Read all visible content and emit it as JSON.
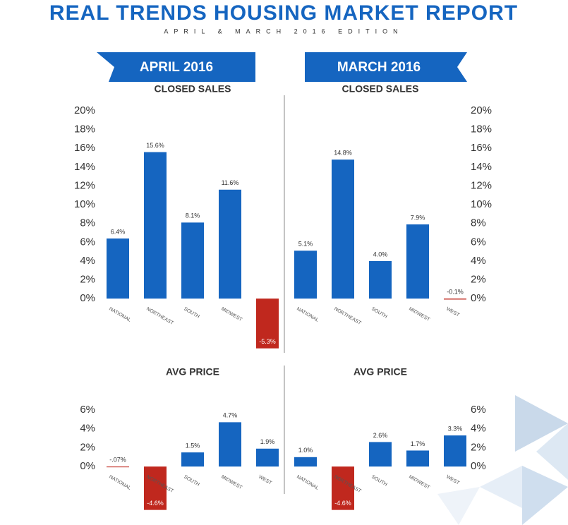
{
  "title": "REAL TRENDS HOUSING MARKET REPORT",
  "subtitle": "APRIL & MARCH 2016 EDITION",
  "banners": [
    "APRIL 2016",
    "MARCH 2016"
  ],
  "chart_data": [
    {
      "type": "bar",
      "title": "CLOSED SALES",
      "axis_side": "left",
      "categories": [
        "NATIONAL",
        "NORTHEAST",
        "SOUTH",
        "MIDWEST",
        null
      ],
      "values": [
        6.4,
        15.6,
        8.1,
        11.6,
        -5.3
      ],
      "value_labels": [
        "6.4%",
        "15.6%",
        "8.1%",
        "11.6%",
        "-5.3%"
      ],
      "color": "#1565c0",
      "negative_color": "#c0281e",
      "ylim": [
        -6,
        20
      ],
      "yticks": [
        {
          "value": 0,
          "label": "0%"
        },
        {
          "value": 2,
          "label": "2%"
        },
        {
          "value": 4,
          "label": "4%"
        },
        {
          "value": 6,
          "label": "6%"
        },
        {
          "value": 8,
          "label": "8%"
        },
        {
          "value": 10,
          "label": "10%"
        },
        {
          "value": 12,
          "label": "12%"
        },
        {
          "value": 14,
          "label": "14%"
        },
        {
          "value": 16,
          "label": "16%"
        },
        {
          "value": 18,
          "label": "18%"
        },
        {
          "value": 20,
          "label": "20%"
        }
      ]
    },
    {
      "type": "bar",
      "title": "CLOSED SALES",
      "axis_side": "right",
      "categories": [
        "NATIONAL",
        "NORTHEAST",
        "SOUTH",
        "MIDWEST",
        "WEST"
      ],
      "values": [
        5.1,
        14.8,
        4.0,
        7.9,
        -0.1
      ],
      "value_labels": [
        "5.1%",
        "14.8%",
        "4.0%",
        "7.9%",
        "-0.1%"
      ],
      "color": "#1565c0",
      "negative_color": "#c0281e",
      "ylim": [
        -6,
        20
      ],
      "yticks": [
        {
          "value": 0,
          "label": "0%"
        },
        {
          "value": 2,
          "label": "2%"
        },
        {
          "value": 4,
          "label": "4%"
        },
        {
          "value": 6,
          "label": "6%"
        },
        {
          "value": 8,
          "label": "8%"
        },
        {
          "value": 10,
          "label": "10%"
        },
        {
          "value": 12,
          "label": "12%"
        },
        {
          "value": 14,
          "label": "14%"
        },
        {
          "value": 16,
          "label": "16%"
        },
        {
          "value": 18,
          "label": "18%"
        },
        {
          "value": 20,
          "label": "20%"
        }
      ]
    },
    {
      "type": "bar",
      "title": "AVG PRICE",
      "axis_side": "left",
      "categories": [
        "NATIONAL",
        "NORTHEAST",
        "SOUTH",
        "MIDWEST",
        "WEST"
      ],
      "values": [
        -0.07,
        -4.6,
        1.5,
        4.7,
        1.9
      ],
      "value_labels": [
        "-.07%",
        "-4.6%",
        "1.5%",
        "4.7%",
        "1.9%"
      ],
      "color": "#1565c0",
      "negative_color": "#c0281e",
      "ylim": [
        -5,
        6
      ],
      "yticks": [
        {
          "value": 0,
          "label": "0%"
        },
        {
          "value": 2,
          "label": "2%"
        },
        {
          "value": 4,
          "label": "4%"
        },
        {
          "value": 6,
          "label": "6%"
        }
      ]
    },
    {
      "type": "bar",
      "title": "AVG PRICE",
      "axis_side": "right",
      "categories": [
        "NATIONAL",
        "NORTHEAST",
        "SOUTH",
        "MIDWEST",
        "WEST"
      ],
      "values": [
        1.0,
        -4.6,
        2.6,
        1.7,
        3.3
      ],
      "value_labels": [
        "1.0%",
        "-4.6%",
        "2.6%",
        "1.7%",
        "3.3%"
      ],
      "color": "#1565c0",
      "negative_color": "#c0281e",
      "ylim": [
        -5,
        6
      ],
      "yticks": [
        {
          "value": 0,
          "label": "0%"
        },
        {
          "value": 2,
          "label": "2%"
        },
        {
          "value": 4,
          "label": "4%"
        },
        {
          "value": 6,
          "label": "6%"
        }
      ]
    }
  ]
}
